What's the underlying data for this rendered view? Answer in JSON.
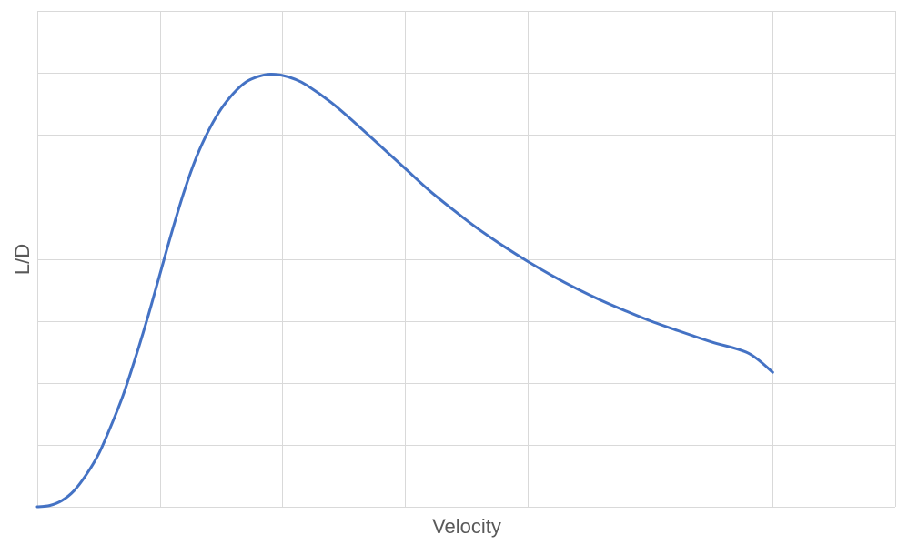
{
  "chart_data": {
    "type": "line",
    "title": "",
    "xlabel": "Velocity",
    "ylabel": "L/D",
    "xlim": [
      0,
      7
    ],
    "ylim": [
      0,
      8
    ],
    "grid": true,
    "legend": "none",
    "x_gridlines": 7,
    "y_gridlines": 8,
    "line_color": "#4472C4",
    "grid_color": "#D9D9D9",
    "series": [
      {
        "x": [
          0,
          0.1,
          0.2,
          0.3,
          0.4,
          0.5,
          0.6,
          0.7,
          0.8,
          0.9,
          1.0,
          1.1,
          1.2,
          1.3,
          1.4,
          1.5,
          1.6,
          1.7,
          1.8,
          1.9,
          2.0,
          2.1,
          2.2,
          2.4,
          2.6,
          2.8,
          3.0,
          3.2,
          3.4,
          3.6,
          3.8,
          4.0,
          4.2,
          4.4,
          4.6,
          4.8,
          5.0,
          5.2,
          5.5,
          5.8,
          6.0
        ],
        "values": [
          0,
          0.02,
          0.1,
          0.26,
          0.52,
          0.85,
          1.3,
          1.8,
          2.4,
          3.05,
          3.75,
          4.45,
          5.1,
          5.65,
          6.08,
          6.42,
          6.67,
          6.85,
          6.94,
          6.98,
          6.96,
          6.9,
          6.8,
          6.52,
          6.18,
          5.82,
          5.46,
          5.1,
          4.78,
          4.48,
          4.21,
          3.96,
          3.73,
          3.52,
          3.33,
          3.16,
          3.0,
          2.86,
          2.66,
          2.48,
          2.17
        ]
      }
    ]
  }
}
